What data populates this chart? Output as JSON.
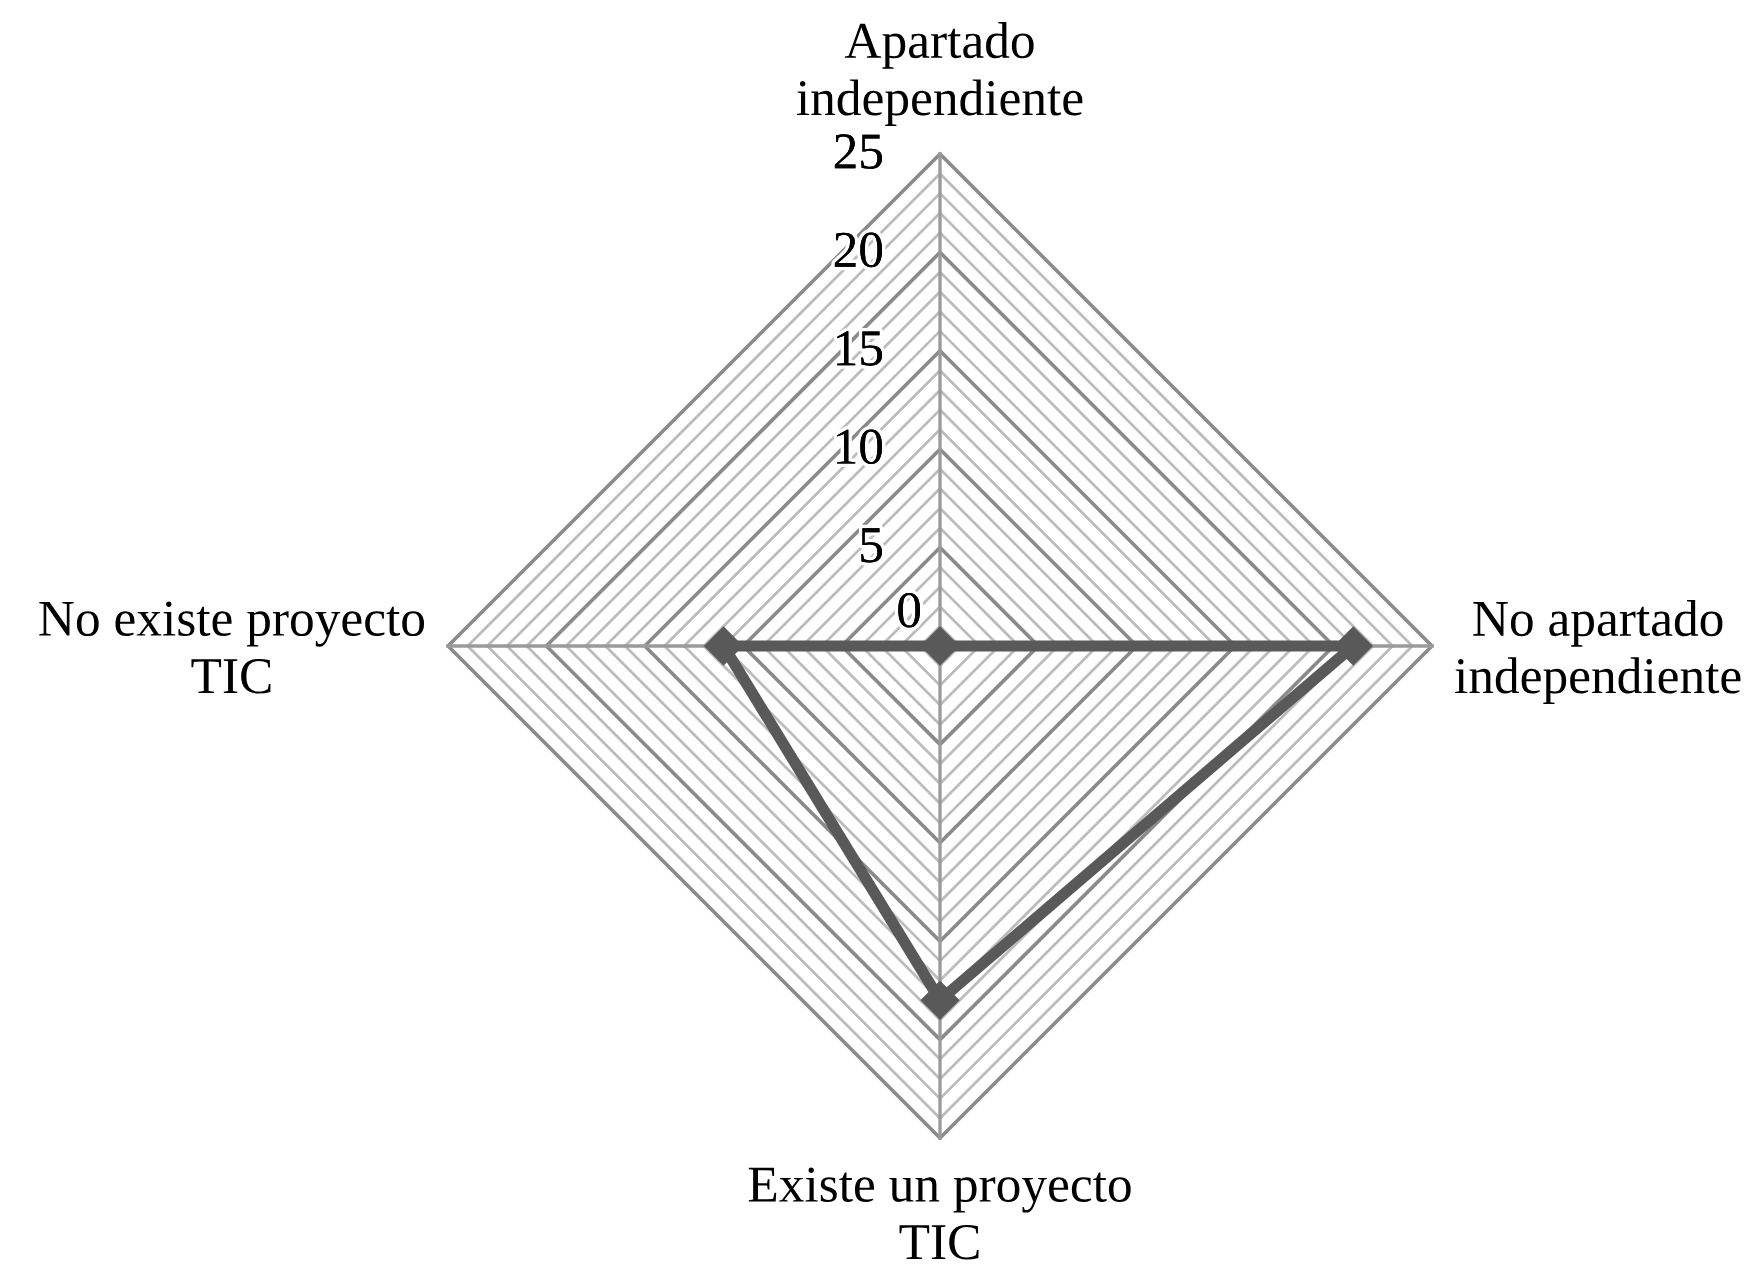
{
  "chart_data": {
    "type": "radar",
    "categories": [
      "Apartado\nindependiente",
      "No apartado\nindependiente",
      "Existe un proyecto\nTIC",
      "No existe proyecto\nTIC"
    ],
    "series": [
      {
        "color": "#595959",
        "values": [
          0,
          21,
          18,
          11
        ]
      }
    ],
    "ylim": [
      0,
      25
    ],
    "yticks": [
      0,
      5,
      10,
      15,
      20,
      25
    ],
    "grid": true,
    "marker": "diamond",
    "line_style": "solid"
  }
}
